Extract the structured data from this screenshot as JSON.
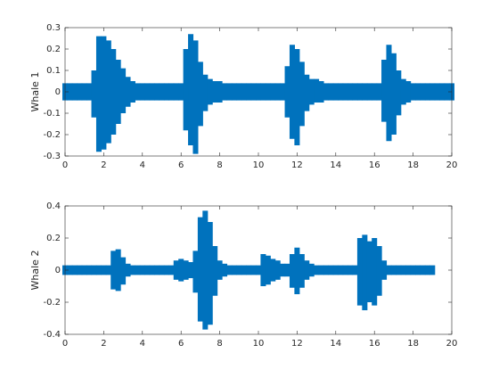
{
  "chart_data": [
    {
      "type": "area",
      "ylabel": "Whale 1",
      "color": "#0072bd",
      "x": [
        0,
        0.25,
        0.5,
        0.75,
        1,
        1.25,
        1.5,
        1.75,
        2,
        2.25,
        2.5,
        2.75,
        3,
        3.25,
        3.5,
        3.75,
        4,
        4.25,
        4.5,
        4.75,
        5,
        5.25,
        5.5,
        5.75,
        6,
        6.25,
        6.5,
        6.75,
        7,
        7.25,
        7.5,
        7.75,
        8,
        8.25,
        8.5,
        8.75,
        9,
        9.25,
        9.5,
        9.75,
        10,
        10.25,
        10.5,
        10.75,
        11,
        11.25,
        11.5,
        11.75,
        12,
        12.25,
        12.5,
        12.75,
        13,
        13.25,
        13.5,
        13.75,
        14,
        14.25,
        14.5,
        14.75,
        15,
        15.25,
        15.5,
        15.75,
        16,
        16.25,
        16.5,
        16.75,
        17,
        17.25,
        17.5,
        17.75,
        18,
        18.25,
        18.5,
        18.75,
        19,
        19.25,
        19.5,
        19.75,
        20
      ],
      "upper": [
        0.04,
        0.04,
        0.04,
        0.04,
        0.04,
        0.04,
        0.1,
        0.26,
        0.26,
        0.24,
        0.2,
        0.15,
        0.11,
        0.07,
        0.05,
        0.04,
        0.04,
        0.04,
        0.04,
        0.04,
        0.04,
        0.04,
        0.04,
        0.04,
        0.04,
        0.2,
        0.27,
        0.24,
        0.14,
        0.08,
        0.06,
        0.05,
        0.05,
        0.04,
        0.04,
        0.04,
        0.04,
        0.04,
        0.04,
        0.04,
        0.04,
        0.04,
        0.04,
        0.04,
        0.04,
        0.04,
        0.12,
        0.22,
        0.2,
        0.14,
        0.08,
        0.06,
        0.06,
        0.05,
        0.04,
        0.04,
        0.04,
        0.04,
        0.04,
        0.04,
        0.04,
        0.04,
        0.04,
        0.04,
        0.04,
        0.04,
        0.15,
        0.22,
        0.18,
        0.1,
        0.06,
        0.05,
        0.04,
        0.04,
        0.04,
        0.04,
        0.04,
        0.04,
        0.04,
        0.04,
        0.04
      ],
      "lower": [
        -0.04,
        -0.04,
        -0.04,
        -0.04,
        -0.04,
        -0.04,
        -0.12,
        -0.28,
        -0.27,
        -0.24,
        -0.2,
        -0.15,
        -0.1,
        -0.07,
        -0.05,
        -0.04,
        -0.04,
        -0.04,
        -0.04,
        -0.04,
        -0.04,
        -0.04,
        -0.04,
        -0.04,
        -0.04,
        -0.18,
        -0.25,
        -0.29,
        -0.16,
        -0.09,
        -0.06,
        -0.05,
        -0.05,
        -0.04,
        -0.04,
        -0.04,
        -0.04,
        -0.04,
        -0.04,
        -0.04,
        -0.04,
        -0.04,
        -0.04,
        -0.04,
        -0.04,
        -0.04,
        -0.12,
        -0.22,
        -0.25,
        -0.16,
        -0.09,
        -0.06,
        -0.05,
        -0.05,
        -0.04,
        -0.04,
        -0.04,
        -0.04,
        -0.04,
        -0.04,
        -0.04,
        -0.04,
        -0.04,
        -0.04,
        -0.04,
        -0.04,
        -0.14,
        -0.23,
        -0.2,
        -0.11,
        -0.06,
        -0.05,
        -0.04,
        -0.04,
        -0.04,
        -0.04,
        -0.04,
        -0.04,
        -0.04,
        -0.04,
        -0.04
      ],
      "xlim": [
        0,
        20
      ],
      "xticks": [
        0,
        2,
        4,
        6,
        8,
        10,
        12,
        14,
        16,
        18,
        20
      ],
      "ylim": [
        -0.3,
        0.3
      ],
      "yticks": [
        -0.3,
        -0.2,
        -0.1,
        0,
        0.1,
        0.2,
        0.3
      ]
    },
    {
      "type": "area",
      "ylabel": "Whale 2",
      "color": "#0072bd",
      "x": [
        0,
        0.25,
        0.5,
        0.75,
        1,
        1.25,
        1.5,
        1.75,
        2,
        2.25,
        2.5,
        2.75,
        3,
        3.25,
        3.5,
        3.75,
        4,
        4.25,
        4.5,
        4.75,
        5,
        5.25,
        5.5,
        5.75,
        6,
        6.25,
        6.5,
        6.75,
        7,
        7.25,
        7.5,
        7.75,
        8,
        8.25,
        8.5,
        8.75,
        9,
        9.25,
        9.5,
        9.75,
        10,
        10.25,
        10.5,
        10.75,
        11,
        11.25,
        11.5,
        11.75,
        12,
        12.25,
        12.5,
        12.75,
        13,
        13.25,
        13.5,
        13.75,
        14,
        14.25,
        14.5,
        14.75,
        15,
        15.25,
        15.5,
        15.75,
        16,
        16.25,
        16.5,
        16.75,
        17,
        17.25,
        17.5,
        17.75,
        18,
        18.25,
        18.5,
        18.75,
        19
      ],
      "upper": [
        0.03,
        0.03,
        0.03,
        0.03,
        0.03,
        0.03,
        0.03,
        0.03,
        0.03,
        0.03,
        0.12,
        0.13,
        0.08,
        0.04,
        0.03,
        0.03,
        0.03,
        0.03,
        0.03,
        0.03,
        0.03,
        0.03,
        0.03,
        0.06,
        0.07,
        0.06,
        0.05,
        0.12,
        0.33,
        0.37,
        0.3,
        0.15,
        0.06,
        0.04,
        0.03,
        0.03,
        0.03,
        0.03,
        0.03,
        0.03,
        0.03,
        0.1,
        0.09,
        0.07,
        0.06,
        0.04,
        0.04,
        0.1,
        0.14,
        0.1,
        0.06,
        0.04,
        0.03,
        0.03,
        0.03,
        0.03,
        0.03,
        0.03,
        0.03,
        0.03,
        0.03,
        0.2,
        0.22,
        0.18,
        0.2,
        0.15,
        0.06,
        0.03,
        0.03,
        0.03,
        0.03,
        0.03,
        0.03,
        0.03,
        0.03,
        0.03,
        0.03
      ],
      "lower": [
        -0.03,
        -0.03,
        -0.03,
        -0.03,
        -0.03,
        -0.03,
        -0.03,
        -0.03,
        -0.03,
        -0.03,
        -0.12,
        -0.13,
        -0.09,
        -0.04,
        -0.03,
        -0.03,
        -0.03,
        -0.03,
        -0.03,
        -0.03,
        -0.03,
        -0.03,
        -0.03,
        -0.06,
        -0.07,
        -0.06,
        -0.05,
        -0.14,
        -0.32,
        -0.37,
        -0.34,
        -0.16,
        -0.06,
        -0.04,
        -0.03,
        -0.03,
        -0.03,
        -0.03,
        -0.03,
        -0.03,
        -0.03,
        -0.1,
        -0.09,
        -0.07,
        -0.06,
        -0.04,
        -0.04,
        -0.11,
        -0.15,
        -0.11,
        -0.06,
        -0.04,
        -0.03,
        -0.03,
        -0.03,
        -0.03,
        -0.03,
        -0.03,
        -0.03,
        -0.03,
        -0.03,
        -0.22,
        -0.25,
        -0.2,
        -0.22,
        -0.16,
        -0.06,
        -0.03,
        -0.03,
        -0.03,
        -0.03,
        -0.03,
        -0.03,
        -0.03,
        -0.03,
        -0.03,
        -0.03
      ],
      "xlim": [
        0,
        20
      ],
      "xticks": [
        0,
        2,
        4,
        6,
        8,
        10,
        12,
        14,
        16,
        18,
        20
      ],
      "ylim": [
        -0.4,
        0.4
      ],
      "yticks": [
        -0.4,
        -0.2,
        0,
        0.2,
        0.4
      ]
    }
  ]
}
